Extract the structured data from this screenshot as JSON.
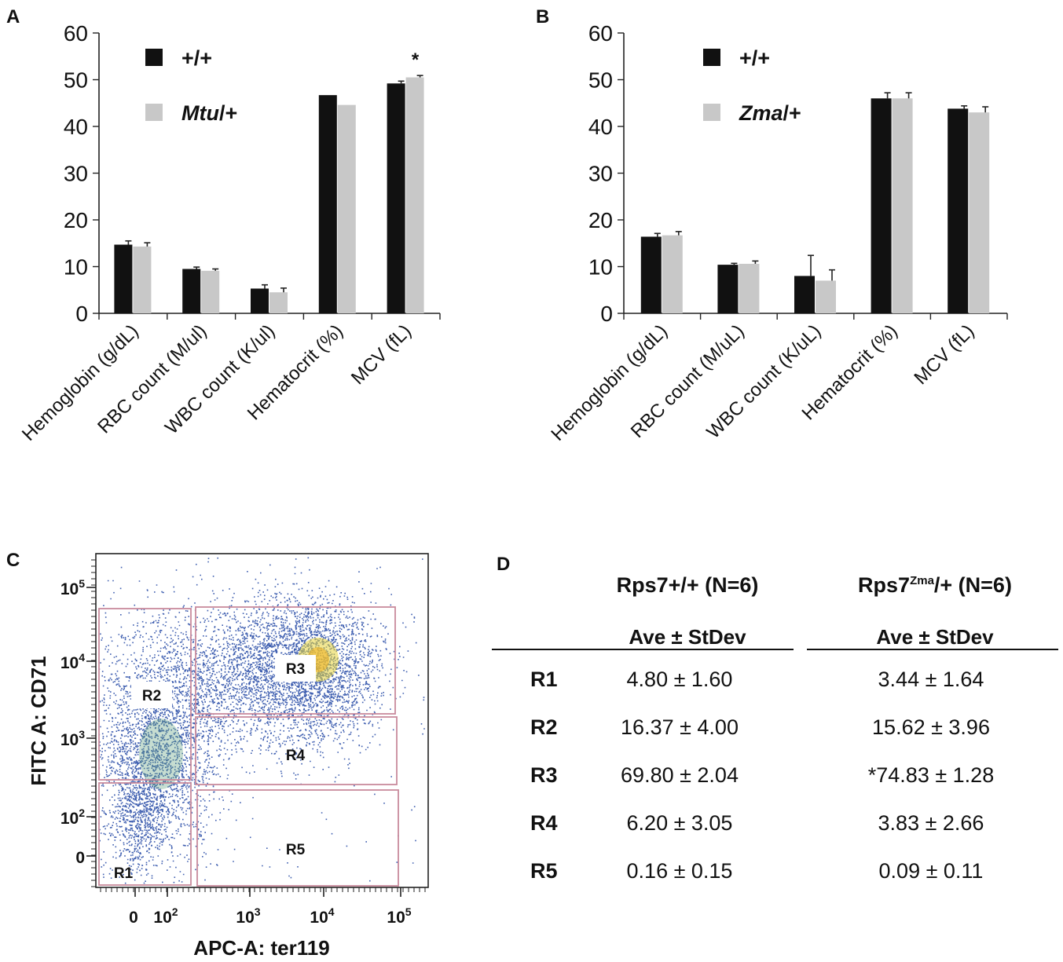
{
  "panel_letters": {
    "a": "A",
    "b": "B",
    "c": "C",
    "d": "D"
  },
  "chart_data": [
    {
      "panel": "A",
      "type": "bar",
      "categories": [
        "Hemoglobin (g/dL)",
        "RBC count (M/ul)",
        "WBC count (K/ul)",
        "Hematocrit (%)",
        "MCV (fL)"
      ],
      "series": [
        {
          "name": "+/+",
          "name_italic": "",
          "color": "#111111",
          "values": [
            14.7,
            9.5,
            5.3,
            46.7,
            49.2
          ],
          "errors": [
            0.8,
            0.4,
            0.8,
            0,
            0.5
          ]
        },
        {
          "name": "/+",
          "name_italic": "Mtu",
          "color": "#c8c8c8",
          "values": [
            14.3,
            9.1,
            4.5,
            44.6,
            50.5
          ],
          "errors": [
            0.8,
            0.4,
            0.9,
            0,
            0.4
          ]
        }
      ],
      "annotations": [
        {
          "category_index": 4,
          "series_index": 1,
          "text": "*"
        }
      ],
      "yticks": [
        0,
        10,
        20,
        30,
        40,
        50,
        60
      ],
      "ylim": [
        0,
        60
      ],
      "legend": "top-left"
    },
    {
      "panel": "B",
      "type": "bar",
      "categories": [
        "Hemoglobin (g/dL)",
        "RBC count (M/uL)",
        "WBC count (K/uL)",
        "Hematocrit (%)",
        "MCV (fL)"
      ],
      "series": [
        {
          "name": "+/+",
          "name_italic": "",
          "color": "#111111",
          "values": [
            16.4,
            10.4,
            8.0,
            46.0,
            43.8
          ],
          "errors": [
            0.7,
            0.3,
            4.4,
            1.2,
            0.6
          ]
        },
        {
          "name": "/+",
          "name_italic": "Zma",
          "color": "#c8c8c8",
          "values": [
            16.7,
            10.6,
            7.0,
            46.0,
            43.0
          ],
          "errors": [
            0.8,
            0.6,
            2.3,
            1.2,
            1.2
          ]
        }
      ],
      "annotations": [],
      "yticks": [
        0,
        10,
        20,
        30,
        40,
        50,
        60
      ],
      "ylim": [
        0,
        60
      ],
      "legend": "top-left"
    },
    {
      "panel": "C",
      "type": "scatter",
      "xlabel": "APC-A: ter119",
      "ylabel": "FITC A: CD71",
      "x_ticks": [
        {
          "label": "0",
          "sup": ""
        },
        {
          "label": "10",
          "sup": "2"
        },
        {
          "label": "10",
          "sup": "3"
        },
        {
          "label": "10",
          "sup": "4"
        },
        {
          "label": "10",
          "sup": "5"
        }
      ],
      "y_ticks": [
        {
          "label": "0",
          "sup": ""
        },
        {
          "label": "10",
          "sup": "2"
        },
        {
          "label": "10",
          "sup": "3"
        },
        {
          "label": "10",
          "sup": "4"
        },
        {
          "label": "10",
          "sup": "5"
        }
      ],
      "gates": [
        "R1",
        "R2",
        "R3",
        "R4",
        "R5"
      ],
      "dot_color": "#3f5fb0",
      "gate_color": "#c98a9c",
      "hotspot_color": "#e8d33a"
    }
  ],
  "table_d": {
    "col1_head": "Rps7+/+ (N=6)",
    "col2_head_pre": "Rps7",
    "col2_head_sup": "Zma",
    "col2_head_post": "/+ (N=6)",
    "sub_head": "Ave ± StDev",
    "rows": [
      {
        "label": "R1",
        "v1": "4.80 ± 1.60",
        "v2": "3.44 ± 1.64"
      },
      {
        "label": "R2",
        "v1": "16.37 ± 4.00",
        "v2": "15.62 ± 3.96"
      },
      {
        "label": "R3",
        "v1": "69.80 ± 2.04",
        "v2": "*74.83 ± 1.28"
      },
      {
        "label": "R4",
        "v1": "6.20 ± 3.05",
        "v2": "3.83 ± 2.66"
      },
      {
        "label": "R5",
        "v1": "0.16 ± 0.15",
        "v2": "0.09 ± 0.11"
      }
    ]
  }
}
